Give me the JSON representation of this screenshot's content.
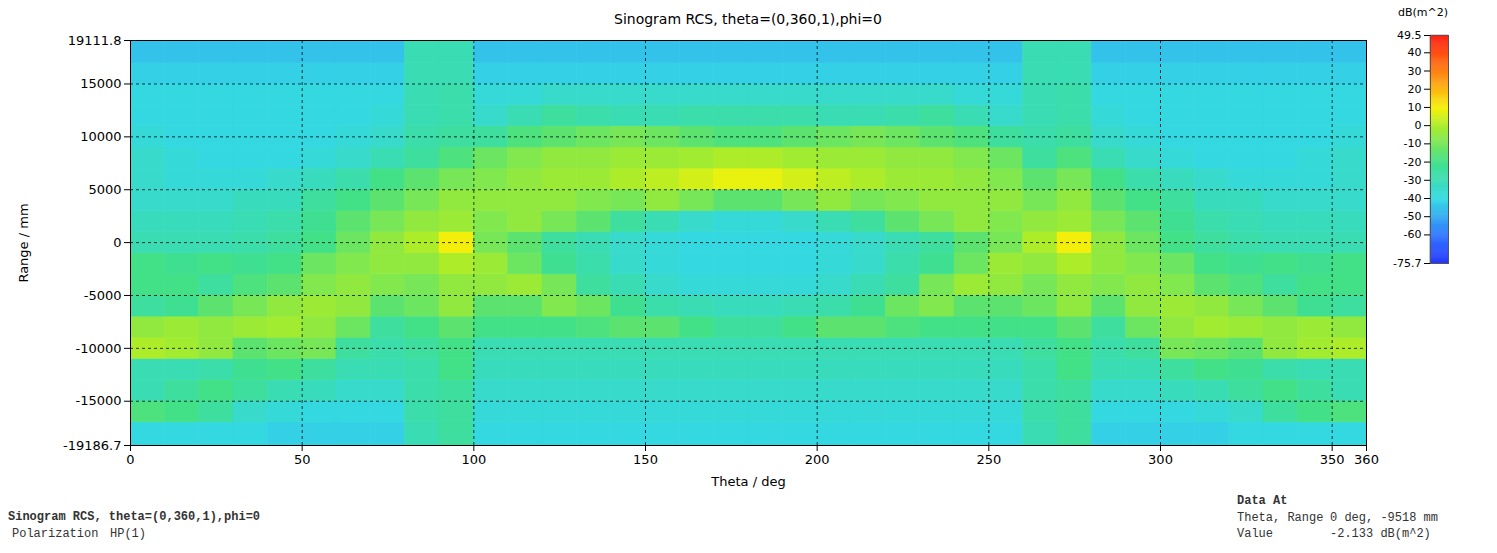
{
  "chart_data": {
    "type": "heatmap",
    "title": "Sinogram RCS, theta=(0,360,1),phi=0",
    "x_label": "Theta / deg",
    "y_label": "Range / mm",
    "xlim": [
      0,
      360
    ],
    "xticks": [
      0,
      50,
      100,
      150,
      200,
      250,
      300,
      350,
      360
    ],
    "ylim": [
      -19186.7,
      19111.8
    ],
    "yticks": [
      -19186.7,
      -15000,
      -10000,
      -5000,
      0,
      5000,
      10000,
      15000,
      19111.8
    ],
    "grid": true,
    "theta_edges": [
      0,
      10,
      20,
      30,
      40,
      50,
      60,
      70,
      80,
      90,
      100,
      110,
      120,
      130,
      140,
      150,
      160,
      170,
      180,
      190,
      200,
      210,
      220,
      230,
      240,
      250,
      260,
      270,
      280,
      290,
      300,
      310,
      320,
      330,
      340,
      350,
      360
    ],
    "range_edges": [
      -19186.7,
      -17000,
      -15000,
      -13000,
      -11000,
      -9000,
      -7000,
      -5000,
      -3000,
      -1000,
      1000,
      3000,
      5000,
      7000,
      9000,
      11000,
      13000,
      15000,
      17000,
      19111.8
    ],
    "values": [
      [
        -40,
        -18,
        -30,
        -30,
        0,
        -5,
        -25,
        -20,
        -20,
        -30,
        -32,
        -35,
        -35,
        -35,
        -38,
        -40,
        -40,
        -42,
        -45
      ],
      [
        -40,
        -20,
        -25,
        -30,
        -2,
        -3,
        -22,
        -20,
        -22,
        -30,
        -32,
        -35,
        -38,
        -38,
        -40,
        -40,
        -40,
        -42,
        -45
      ],
      [
        -40,
        -25,
        -20,
        -28,
        -5,
        -5,
        -15,
        -25,
        -20,
        -30,
        -32,
        -35,
        -38,
        -40,
        -40,
        -40,
        -40,
        -42,
        -45
      ],
      [
        -40,
        -35,
        -25,
        -22,
        -15,
        -3,
        -10,
        -18,
        -22,
        -28,
        -30,
        -32,
        -38,
        -40,
        -40,
        -40,
        -40,
        -42,
        -45
      ],
      [
        -42,
        -38,
        -30,
        -20,
        -12,
        -2,
        -5,
        -15,
        -20,
        -25,
        -28,
        -32,
        -35,
        -40,
        -40,
        -40,
        -40,
        -42,
        -45
      ],
      [
        -42,
        -40,
        -32,
        -25,
        -10,
        -5,
        -3,
        -8,
        -12,
        -20,
        -22,
        -25,
        -32,
        -38,
        -40,
        -40,
        -40,
        -42,
        -45
      ],
      [
        -42,
        -40,
        -35,
        -30,
        -25,
        -12,
        -5,
        -5,
        -8,
        -12,
        -15,
        -20,
        -28,
        -35,
        -38,
        -40,
        -40,
        -42,
        -45
      ],
      [
        -42,
        -40,
        -35,
        -30,
        -28,
        -25,
        -15,
        -8,
        -5,
        -5,
        -10,
        -15,
        -20,
        -30,
        -35,
        -38,
        -40,
        -42,
        -45
      ],
      [
        -30,
        -28,
        -28,
        -28,
        -25,
        -20,
        -12,
        -10,
        -5,
        0,
        -5,
        -10,
        -15,
        -25,
        -28,
        -30,
        -30,
        -30,
        -30
      ],
      [
        -25,
        -25,
        -25,
        -20,
        -20,
        -15,
        -5,
        -5,
        0,
        10,
        -3,
        -5,
        -10,
        -18,
        -25,
        -28,
        -28,
        -30,
        -30
      ],
      [
        -40,
        -38,
        -35,
        -32,
        -30,
        -20,
        -15,
        -5,
        -3,
        -10,
        -8,
        -5,
        -8,
        -12,
        -25,
        -35,
        -38,
        -42,
        -45
      ],
      [
        -40,
        -38,
        -35,
        -32,
        -30,
        -20,
        -15,
        -3,
        -12,
        -15,
        -5,
        -5,
        -5,
        -8,
        -18,
        -30,
        -38,
        -42,
        -45
      ],
      [
        -40,
        -38,
        -35,
        -32,
        -30,
        -20,
        -8,
        -10,
        -22,
        -25,
        -10,
        -5,
        -3,
        -5,
        -15,
        -25,
        -35,
        -42,
        -45
      ],
      [
        -40,
        -38,
        -35,
        -32,
        -30,
        -18,
        -12,
        -25,
        -28,
        -30,
        -15,
        -8,
        -3,
        -5,
        -12,
        -28,
        -35,
        -42,
        -45
      ],
      [
        -40,
        -38,
        -35,
        -32,
        -30,
        -15,
        -22,
        -30,
        -35,
        -35,
        -25,
        -10,
        0,
        -3,
        -10,
        -30,
        -35,
        -42,
        -45
      ],
      [
        -40,
        -38,
        -35,
        -32,
        -30,
        -15,
        -28,
        -35,
        -38,
        -38,
        -30,
        -5,
        2,
        -3,
        -12,
        -30,
        -35,
        -42,
        -45
      ],
      [
        -40,
        -38,
        -35,
        -32,
        -30,
        -20,
        -30,
        -38,
        -40,
        -40,
        -35,
        -10,
        5,
        -2,
        -15,
        -28,
        -35,
        -42,
        -45
      ],
      [
        -40,
        -38,
        -35,
        -32,
        -30,
        -25,
        -32,
        -38,
        -40,
        -40,
        -38,
        -15,
        8,
        0,
        -18,
        -28,
        -35,
        -42,
        -45
      ],
      [
        -40,
        -38,
        -35,
        -32,
        -30,
        -25,
        -32,
        -38,
        -40,
        -40,
        -38,
        -15,
        8,
        0,
        -18,
        -28,
        -35,
        -42,
        -45
      ],
      [
        -40,
        -38,
        -35,
        -32,
        -30,
        -20,
        -30,
        -38,
        -40,
        -40,
        -35,
        -10,
        5,
        -2,
        -15,
        -28,
        -35,
        -42,
        -45
      ],
      [
        -40,
        -38,
        -35,
        -32,
        -30,
        -15,
        -28,
        -35,
        -38,
        -38,
        -30,
        -5,
        2,
        -3,
        -12,
        -30,
        -35,
        -42,
        -45
      ],
      [
        -40,
        -38,
        -35,
        -32,
        -30,
        -15,
        -22,
        -30,
        -35,
        -35,
        -25,
        -10,
        0,
        -3,
        -10,
        -30,
        -35,
        -42,
        -45
      ],
      [
        -40,
        -38,
        -35,
        -32,
        -30,
        -18,
        -12,
        -25,
        -28,
        -30,
        -15,
        -8,
        -3,
        -5,
        -12,
        -28,
        -35,
        -42,
        -45
      ],
      [
        -40,
        -38,
        -35,
        -32,
        -30,
        -20,
        -8,
        -10,
        -22,
        -25,
        -10,
        -5,
        -3,
        -5,
        -15,
        -25,
        -35,
        -42,
        -45
      ],
      [
        -40,
        -38,
        -35,
        -32,
        -30,
        -20,
        -15,
        -3,
        -12,
        -15,
        -5,
        -5,
        -5,
        -8,
        -18,
        -30,
        -38,
        -42,
        -45
      ],
      [
        -40,
        -38,
        -35,
        -32,
        -30,
        -20,
        -15,
        -5,
        -3,
        -10,
        -8,
        -5,
        -8,
        -12,
        -25,
        -35,
        -38,
        -42,
        -45
      ],
      [
        -30,
        -28,
        -28,
        -28,
        -25,
        -20,
        -12,
        -10,
        -5,
        0,
        -5,
        -10,
        -15,
        -25,
        -28,
        -30,
        -30,
        -30,
        -30
      ],
      [
        -25,
        -25,
        -25,
        -20,
        -20,
        -15,
        -5,
        -5,
        0,
        10,
        -3,
        -5,
        -10,
        -18,
        -25,
        -28,
        -28,
        -30,
        -30
      ],
      [
        -42,
        -40,
        -35,
        -30,
        -28,
        -25,
        -15,
        -8,
        -5,
        -5,
        -10,
        -15,
        -20,
        -30,
        -35,
        -38,
        -40,
        -42,
        -45
      ],
      [
        -42,
        -40,
        -35,
        -30,
        -25,
        -12,
        -5,
        -5,
        -8,
        -12,
        -15,
        -20,
        -28,
        -35,
        -38,
        -40,
        -40,
        -42,
        -45
      ],
      [
        -42,
        -40,
        -32,
        -25,
        -10,
        -5,
        -3,
        -8,
        -12,
        -20,
        -22,
        -25,
        -32,
        -38,
        -40,
        -40,
        -40,
        -42,
        -45
      ],
      [
        -42,
        -38,
        -30,
        -20,
        -12,
        -2,
        -5,
        -15,
        -20,
        -25,
        -28,
        -32,
        -35,
        -40,
        -40,
        -40,
        -40,
        -42,
        -45
      ],
      [
        -40,
        -35,
        -25,
        -22,
        -15,
        -3,
        -10,
        -18,
        -22,
        -28,
        -30,
        -32,
        -38,
        -40,
        -40,
        -40,
        -40,
        -42,
        -45
      ],
      [
        -40,
        -25,
        -20,
        -28,
        -5,
        -5,
        -15,
        -25,
        -20,
        -30,
        -32,
        -35,
        -38,
        -40,
        -40,
        -40,
        -40,
        -42,
        -45
      ],
      [
        -40,
        -20,
        -25,
        -30,
        -2,
        -3,
        -22,
        -20,
        -22,
        -30,
        -32,
        -35,
        -38,
        -38,
        -40,
        -40,
        -40,
        -42,
        -45
      ],
      [
        -40,
        -18,
        -30,
        -30,
        0,
        -5,
        -25,
        -20,
        -20,
        -30,
        -32,
        -35,
        -35,
        -35,
        -38,
        -40,
        -40,
        -42,
        -45
      ]
    ],
    "colorbar": {
      "title": "dB(m^2)",
      "range": [
        -75.7,
        49.5
      ],
      "ticks": [
        -60,
        -50,
        -40,
        -30,
        -20,
        -10,
        0,
        10,
        20,
        30,
        40
      ]
    },
    "caption": "Sinogram RCS, theta=(0,360,1),phi=0",
    "polarization": {
      "label": "Polarization",
      "value": "HP(1)"
    },
    "data_at": {
      "title": "Data At",
      "rows": [
        [
          "Theta, Range",
          "0 deg, -9518 mm"
        ],
        [
          "Value",
          "-2.133 dB(m^2)"
        ]
      ]
    }
  }
}
